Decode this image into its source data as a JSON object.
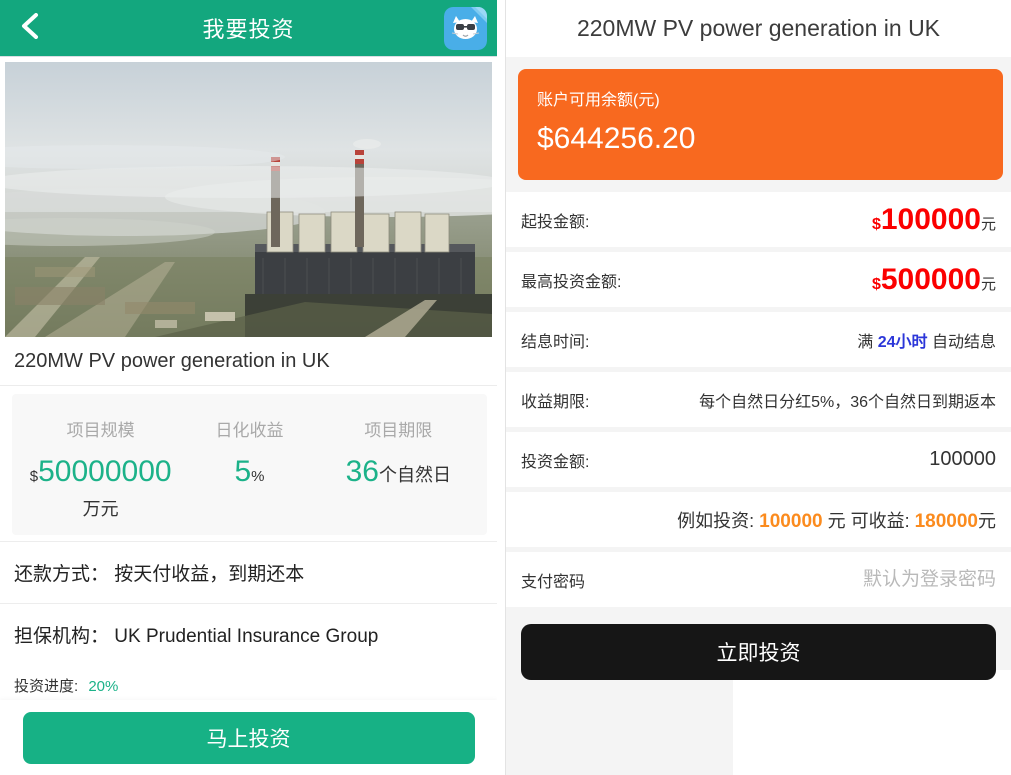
{
  "colors": {
    "header_green": "#13a77e",
    "accent_green": "#1cb289",
    "orange_card": "#f8691f",
    "value_red": "#fb0000",
    "highlight_blue": "#2b36d9",
    "example_orange": "#fb8b1e",
    "button_black": "#161616"
  },
  "left": {
    "header": {
      "title": "我要投资",
      "back_icon": "chevron-left",
      "app_icon": "cat-avatar"
    },
    "project_title": "220MW PV power generation in UK",
    "stats": [
      {
        "label": "项目规模",
        "prefix": "$",
        "value": "50000000",
        "suffix": "",
        "unit": "万元"
      },
      {
        "label": "日化收益",
        "prefix": "",
        "value": "5",
        "suffix": "%",
        "unit": ""
      },
      {
        "label": "项目期限",
        "prefix": "",
        "value": "36",
        "suffix": "个自然日",
        "unit": ""
      }
    ],
    "repayment": {
      "label": "还款方式：",
      "value": "按天付收益，到期还本"
    },
    "guarantee": {
      "label": "担保机构：",
      "value": "UK Prudential Insurance Group"
    },
    "progress": {
      "label": "投资进度:",
      "percent": "20%",
      "fill": 20
    },
    "invest_button": "马上投资"
  },
  "right": {
    "title": "220MW PV power generation in UK",
    "balance": {
      "label": "账户可用余额(元)",
      "amount": "$644256.20"
    },
    "rows": {
      "min": {
        "label": "起投金额:",
        "currency": "$",
        "value": "100000",
        "unit": "元"
      },
      "max": {
        "label": "最高投资金额:",
        "currency": "$",
        "value": "500000",
        "unit": "元"
      },
      "interest_time": {
        "label": "结息时间:",
        "pre": "满 ",
        "highlight": "24小时",
        "post": " 自动结息"
      },
      "yield_term": {
        "label": "收益期限:",
        "value": "每个自然日分红5%，36个自然日到期返本"
      },
      "amount": {
        "label": "投资金额:",
        "value": "100000"
      },
      "example": {
        "pre": "例如投资: ",
        "v1": "100000",
        "mid": " 元 可收益: ",
        "v2": "180000",
        "suffix": "元"
      },
      "password": {
        "label": "支付密码",
        "placeholder": "默认为登录密码"
      }
    },
    "submit_button": "立即投资"
  }
}
